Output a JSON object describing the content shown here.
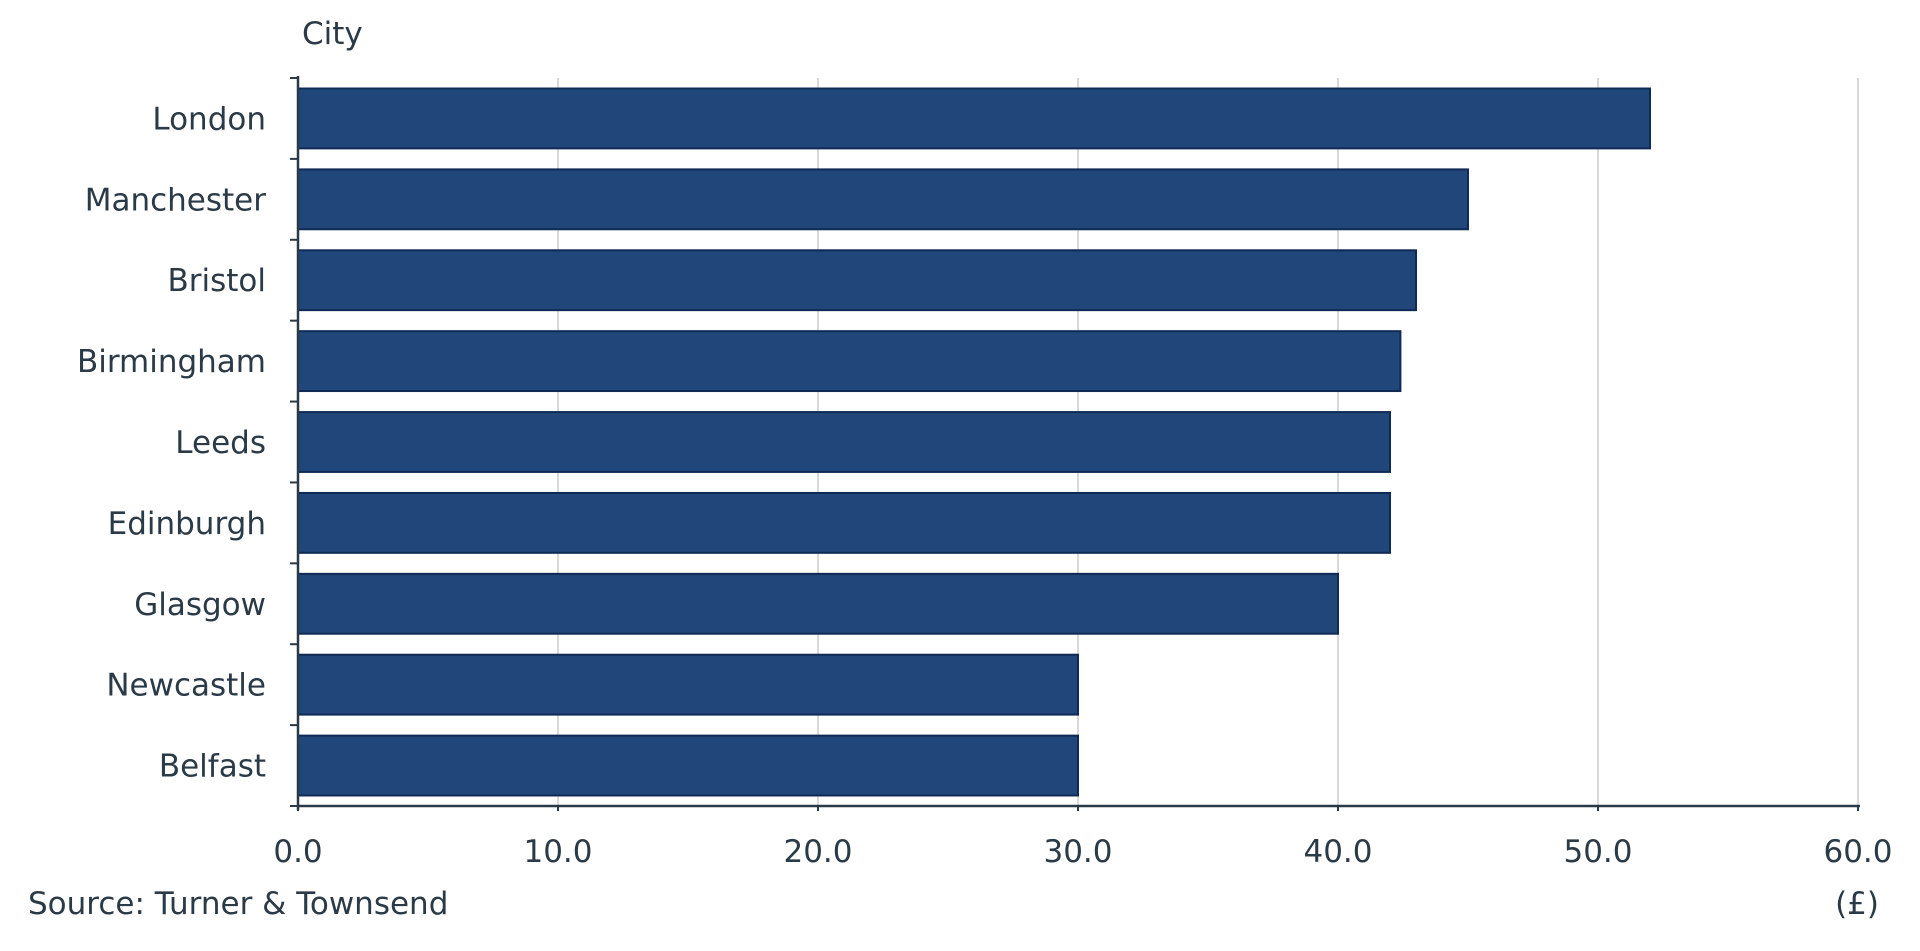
{
  "chart_data": {
    "type": "bar",
    "orientation": "horizontal",
    "ylabel": "City",
    "xlabel": "(£)",
    "source": "Source: Turner & Townsend",
    "categories": [
      "London",
      "Manchester",
      "Bristol",
      "Birmingham",
      "Leeds",
      "Edinburgh",
      "Glasgow",
      "Newcastle",
      "Belfast"
    ],
    "values": [
      52.0,
      45.0,
      43.0,
      42.4,
      42.0,
      42.0,
      40.0,
      30.0,
      30.0
    ],
    "xlim": [
      0,
      60
    ],
    "xticks": [
      "0.0",
      "10.0",
      "20.0",
      "30.0",
      "40.0",
      "50.0",
      "60.0"
    ],
    "grid": "vertical",
    "bar_color": "#21477a",
    "bar_edge_color": "#0f2a55"
  }
}
